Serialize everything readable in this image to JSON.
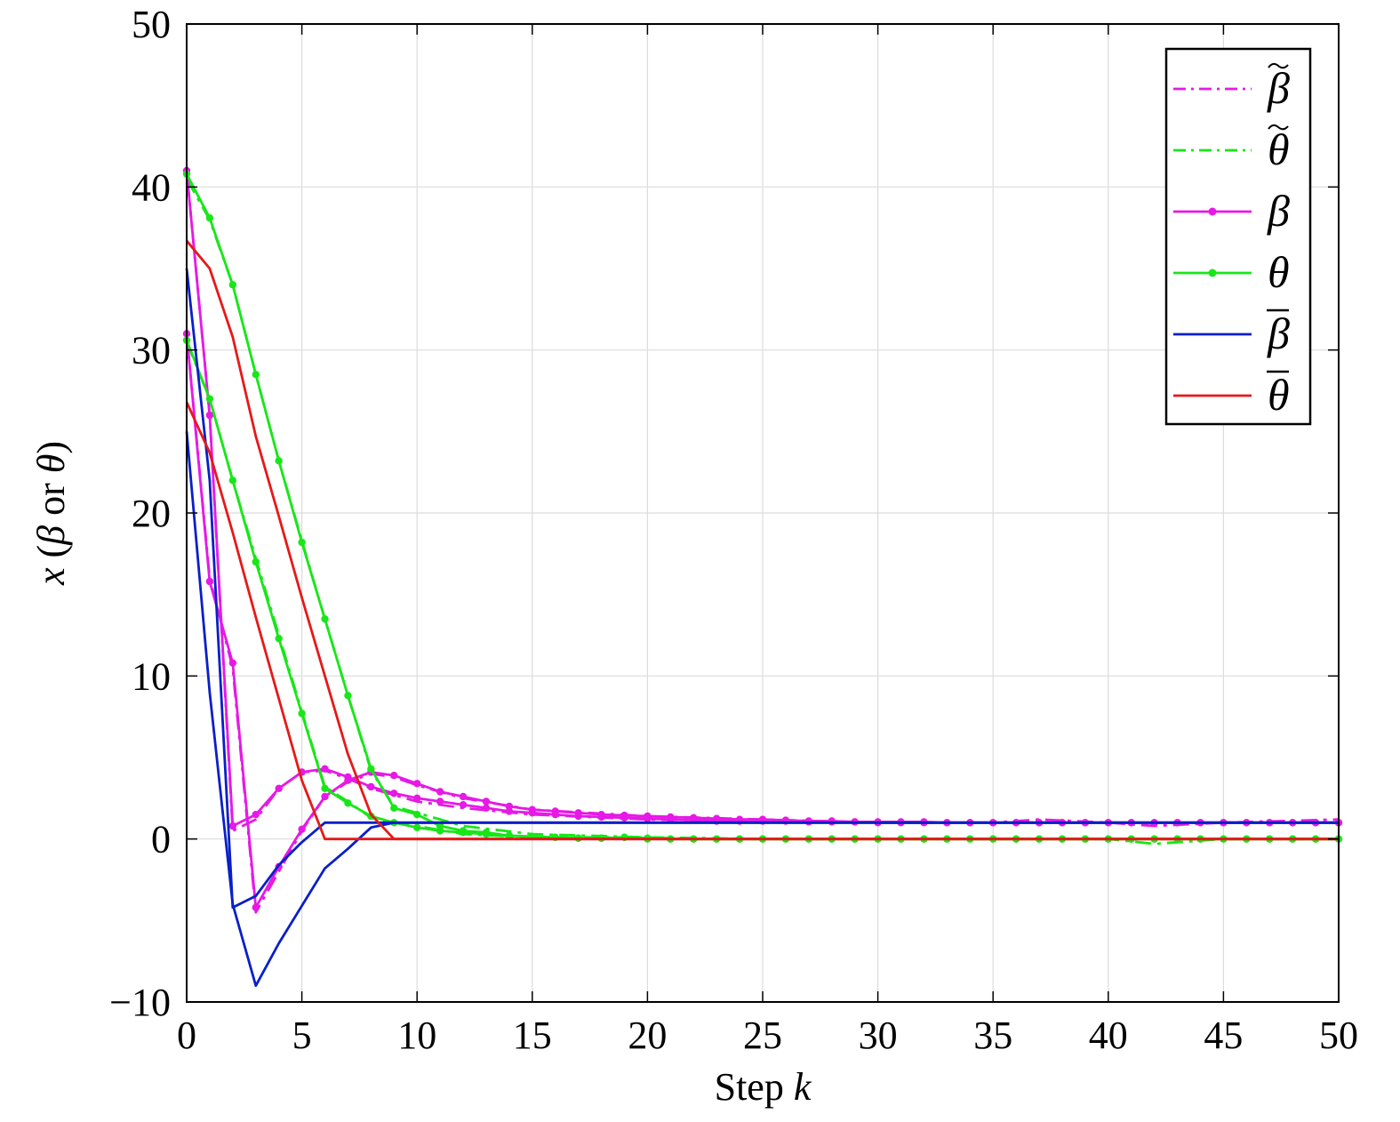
{
  "chart_data": {
    "type": "line",
    "title": "",
    "xlabel": "Step k",
    "xlabel_parts": {
      "text": "Step ",
      "var": "k"
    },
    "ylabel": "x (β or θ)",
    "ylabel_parts": {
      "var": "x",
      "open": " (",
      "beta": "β",
      "or": " or ",
      "theta": "θ",
      "close": ")"
    },
    "xlim": [
      0,
      50
    ],
    "ylim": [
      -10,
      50
    ],
    "xticks": [
      "0",
      "5",
      "10",
      "15",
      "20",
      "25",
      "30",
      "35",
      "40",
      "45",
      "50"
    ],
    "yticks": [
      "−10",
      "0",
      "10",
      "20",
      "30",
      "40",
      "50"
    ],
    "grid": true,
    "legend_position": "top-right",
    "legend": [
      {
        "label": "β",
        "accent": "tilde",
        "color": "#e619e6",
        "style": "dashdot",
        "marker": false
      },
      {
        "label": "θ",
        "accent": "tilde",
        "color": "#19e619",
        "style": "dashdot",
        "marker": false
      },
      {
        "label": "β",
        "accent": "",
        "color": "#e619e6",
        "style": "solid",
        "marker": true
      },
      {
        "label": "θ",
        "accent": "",
        "color": "#19e619",
        "style": "solid",
        "marker": true
      },
      {
        "label": "β",
        "accent": "bar",
        "color": "#0a1fc8",
        "style": "solid",
        "marker": false
      },
      {
        "label": "θ",
        "accent": "bar",
        "color": "#e61919",
        "style": "solid",
        "marker": false
      }
    ],
    "series": [
      {
        "group": "beta-tilde",
        "color": "#e619e6",
        "style": "dashdot",
        "marker": false,
        "x": [
          0,
          1,
          2,
          3,
          4,
          5,
          6,
          7,
          8,
          9,
          10,
          12,
          15,
          20,
          25,
          30,
          35,
          37,
          40,
          42,
          45,
          50
        ],
        "y": [
          41,
          26,
          0.5,
          1.2,
          3.1,
          4.1,
          4.2,
          3.7,
          3.1,
          2.7,
          2.3,
          1.9,
          1.5,
          1.2,
          1.1,
          1.0,
          1.0,
          1.2,
          1.0,
          0.8,
          1.0,
          1.2
        ]
      },
      {
        "group": "beta-tilde",
        "color": "#e619e6",
        "style": "dashdot",
        "marker": false,
        "x": [
          0,
          1,
          2,
          3,
          4,
          5,
          6,
          7,
          8,
          9,
          10,
          12,
          15,
          20,
          25,
          30,
          40,
          50
        ],
        "y": [
          31,
          16,
          10.5,
          -4.5,
          -2,
          0.5,
          2.6,
          3.5,
          4.0,
          3.8,
          3.3,
          2.5,
          1.8,
          1.4,
          1.2,
          1.0,
          1.0,
          1.0
        ]
      },
      {
        "group": "theta-tilde",
        "color": "#19e619",
        "style": "dashdot",
        "marker": false,
        "x": [
          0,
          1,
          2,
          3,
          4,
          5,
          6,
          7,
          8,
          9,
          10,
          12,
          15,
          20,
          22,
          25,
          30,
          35,
          40,
          42,
          45,
          50
        ],
        "y": [
          40.5,
          38,
          34,
          28.5,
          23.2,
          18.3,
          13.5,
          8.8,
          4.2,
          2.0,
          1.6,
          0.8,
          0.3,
          0.1,
          0.0,
          0.0,
          0.0,
          0.0,
          0.0,
          -0.3,
          0.0,
          0.0
        ]
      },
      {
        "group": "theta-tilde",
        "color": "#19e619",
        "style": "dashdot",
        "marker": false,
        "x": [
          0,
          1,
          2,
          3,
          4,
          5,
          6,
          7,
          8,
          9,
          10,
          12,
          15,
          20,
          25,
          30,
          40,
          50
        ],
        "y": [
          30.5,
          27,
          22,
          17.2,
          12.5,
          7.8,
          3.2,
          2.3,
          1.3,
          1.0,
          0.8,
          0.3,
          0.1,
          0.1,
          0.0,
          0.0,
          0.0,
          0.0
        ]
      },
      {
        "group": "beta",
        "color": "#e619e6",
        "style": "solid",
        "marker": true,
        "x": [
          0,
          1,
          2,
          3,
          4,
          5,
          6,
          7,
          8,
          9,
          10,
          11,
          12,
          13,
          14,
          15,
          16,
          17,
          18,
          19,
          20,
          21,
          22,
          23,
          24,
          25,
          26,
          27,
          28,
          29,
          30,
          31,
          32,
          33,
          34,
          35,
          36,
          37,
          38,
          39,
          40,
          41,
          42,
          43,
          44,
          45,
          46,
          47,
          48,
          49,
          50
        ],
        "y": [
          41,
          26,
          0.8,
          1.5,
          3.1,
          4.1,
          4.3,
          3.8,
          3.2,
          2.8,
          2.5,
          2.3,
          2.1,
          1.9,
          1.7,
          1.6,
          1.5,
          1.4,
          1.35,
          1.3,
          1.25,
          1.2,
          1.15,
          1.1,
          1.1,
          1.1,
          1.1,
          1.05,
          1.05,
          1.05,
          1.0,
          1.0,
          1.0,
          1.0,
          1.0,
          1.0,
          1.0,
          1.0,
          1.0,
          1.0,
          1.0,
          1.0,
          1.0,
          1.0,
          1.0,
          1.0,
          1.0,
          1.0,
          1.0,
          1.0,
          1.0
        ]
      },
      {
        "group": "beta",
        "color": "#e619e6",
        "style": "solid",
        "marker": true,
        "x": [
          0,
          1,
          2,
          3,
          4,
          5,
          6,
          7,
          8,
          9,
          10,
          11,
          12,
          13,
          14,
          15,
          16,
          17,
          18,
          19,
          20,
          21,
          22,
          23,
          24,
          25,
          26,
          27,
          28,
          29,
          30,
          31,
          32,
          33,
          34,
          35,
          36,
          37,
          38,
          39,
          40,
          41,
          42,
          43,
          44,
          45,
          46,
          47,
          48,
          49,
          50
        ],
        "y": [
          31,
          15.8,
          10.8,
          -4.2,
          -1.7,
          0.6,
          2.6,
          3.6,
          4.1,
          3.9,
          3.4,
          2.9,
          2.6,
          2.3,
          2.0,
          1.8,
          1.7,
          1.6,
          1.5,
          1.45,
          1.4,
          1.35,
          1.3,
          1.25,
          1.2,
          1.2,
          1.15,
          1.1,
          1.1,
          1.05,
          1.05,
          1.05,
          1.05,
          1.0,
          1.0,
          1.0,
          1.0,
          1.0,
          1.0,
          1.0,
          1.0,
          1.0,
          1.0,
          1.0,
          1.0,
          1.0,
          1.0,
          1.0,
          1.0,
          1.0,
          1.0
        ]
      },
      {
        "group": "theta",
        "color": "#19e619",
        "style": "solid",
        "marker": true,
        "x": [
          0,
          1,
          2,
          3,
          4,
          5,
          6,
          7,
          8,
          9,
          10,
          11,
          12,
          13,
          14,
          15,
          16,
          17,
          18,
          19,
          20,
          21,
          22,
          23,
          24,
          25,
          26,
          27,
          28,
          29,
          30,
          31,
          32,
          33,
          34,
          35,
          36,
          37,
          38,
          39,
          40,
          41,
          42,
          43,
          44,
          45,
          46,
          47,
          48,
          49,
          50
        ],
        "y": [
          40.8,
          38.1,
          34,
          28.5,
          23.2,
          18.2,
          13.5,
          8.8,
          4.3,
          1.9,
          1.5,
          0.8,
          0.5,
          0.4,
          0.2,
          0.15,
          0.1,
          0.05,
          0.05,
          0.1,
          0.05,
          0.0,
          0.0,
          0.0,
          0.0,
          0.0,
          0.0,
          0.0,
          0.0,
          0.0,
          0.0,
          0.0,
          0.0,
          0.0,
          0.0,
          0.0,
          0.0,
          0.0,
          0.0,
          0.0,
          0.0,
          0.0,
          0.0,
          0.0,
          0.0,
          0.0,
          0.0,
          0.0,
          0.0,
          0.0,
          0.0
        ]
      },
      {
        "group": "theta",
        "color": "#19e619",
        "style": "solid",
        "marker": true,
        "x": [
          0,
          1,
          2,
          3,
          4,
          5,
          6,
          7,
          8,
          9,
          10,
          11,
          12,
          13,
          14,
          15,
          16,
          17,
          18,
          19,
          20,
          21,
          22,
          23,
          24,
          25,
          26,
          27,
          28,
          29,
          30,
          31,
          32,
          33,
          34,
          35,
          36,
          37,
          38,
          39,
          40,
          41,
          42,
          43,
          44,
          45,
          46,
          47,
          48,
          49,
          50
        ],
        "y": [
          30.6,
          27,
          22,
          17,
          12.3,
          7.7,
          3.1,
          2.2,
          1.4,
          1.0,
          0.7,
          0.5,
          0.4,
          0.3,
          0.2,
          0.15,
          0.1,
          0.05,
          0.05,
          0.1,
          0.0,
          0.0,
          0.0,
          0.0,
          0.0,
          0.0,
          0.0,
          0.0,
          0.0,
          0.0,
          0.0,
          0.0,
          0.0,
          0.0,
          0.0,
          0.0,
          0.0,
          0.0,
          0.0,
          0.0,
          0.0,
          0.0,
          0.0,
          0.0,
          0.0,
          0.0,
          0.0,
          0.0,
          0.0,
          0.0,
          0.0
        ]
      },
      {
        "group": "beta-bar",
        "color": "#0a1fc8",
        "style": "solid",
        "marker": false,
        "x": [
          0,
          1,
          2,
          3,
          4,
          5,
          6,
          7,
          8,
          9,
          10,
          20,
          30,
          40,
          50
        ],
        "y": [
          35,
          22,
          -4.2,
          -3.5,
          -1.6,
          -0.2,
          1.0,
          1.0,
          1.0,
          1.0,
          1.0,
          1.0,
          1.0,
          1.0,
          1.0
        ]
      },
      {
        "group": "beta-bar",
        "color": "#0a1fc8",
        "style": "solid",
        "marker": false,
        "x": [
          0,
          1,
          2,
          3,
          4,
          5,
          6,
          7,
          8,
          9,
          10,
          20,
          30,
          40,
          50
        ],
        "y": [
          25,
          9,
          -4,
          -9,
          -6.4,
          -4.1,
          -1.8,
          -0.6,
          0.7,
          1.0,
          1.0,
          1.0,
          1.0,
          1.0,
          1.0
        ]
      },
      {
        "group": "theta-bar",
        "color": "#e61919",
        "style": "solid",
        "marker": false,
        "x": [
          0,
          1,
          2,
          3,
          4,
          5,
          6,
          7,
          8,
          9,
          10,
          20,
          30,
          40,
          50
        ],
        "y": [
          36.7,
          35,
          30.8,
          24.7,
          19.8,
          14.8,
          10.0,
          5.2,
          1.5,
          0.0,
          0.0,
          0.0,
          0.0,
          0.0,
          0.0
        ]
      },
      {
        "group": "theta-bar",
        "color": "#e61919",
        "style": "solid",
        "marker": false,
        "x": [
          0,
          1,
          2,
          3,
          4,
          5,
          6,
          7,
          8,
          9,
          10,
          20,
          30,
          40,
          50
        ],
        "y": [
          26.8,
          23.7,
          18.8,
          13.6,
          8.6,
          3.6,
          0.0,
          0.0,
          0.0,
          0.0,
          0.0,
          0.0,
          0.0,
          0.0,
          0.0
        ]
      }
    ]
  }
}
